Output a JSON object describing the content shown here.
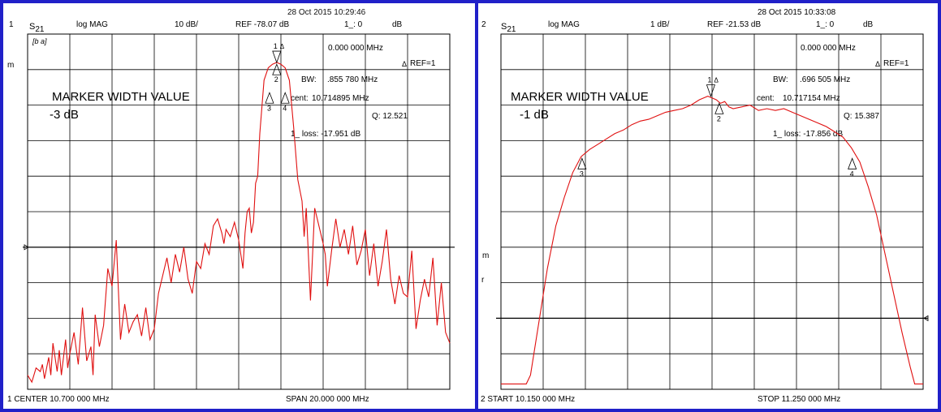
{
  "chart_data": [
    {
      "type": "line",
      "channel": "1",
      "param": "S",
      "param_sub": "21",
      "format": "log MAG",
      "scale": "10 dB/",
      "ref": "REF -78.07 dB",
      "marker_readout": "1_: 0",
      "marker_unit": "dB",
      "timestamp": "28 Oct 2015  10:29:46",
      "marker_freq": "0.000 000 MHz",
      "delta_ref": "REF=1",
      "bw_label": "BW:",
      "bw_value": ".855 780 MHz",
      "cent_label": "cent:",
      "cent_value": "10.714895 MHz",
      "q_value": "Q: 12.521",
      "loss_value": "1_ loss: -17.951 dB",
      "title": "MARKER WIDTH VALUE",
      "width_setting": "-3 dB",
      "side_label": "m",
      "corner_icon": "[b a]",
      "footer_left": "1 CENTER   10.700 000 MHz",
      "footer_right": "SPAN   20.000 000 MHz",
      "x_range": [
        0.0,
        1.0
      ],
      "ref_level_div": 6,
      "series": [
        {
          "color": "#e01010",
          "points": [
            [
              0.0,
              9.6
            ],
            [
              0.01,
              9.8
            ],
            [
              0.02,
              9.4
            ],
            [
              0.03,
              9.5
            ],
            [
              0.035,
              9.3
            ],
            [
              0.04,
              9.7
            ],
            [
              0.05,
              9.1
            ],
            [
              0.055,
              9.6
            ],
            [
              0.06,
              8.7
            ],
            [
              0.07,
              9.5
            ],
            [
              0.075,
              8.9
            ],
            [
              0.08,
              9.6
            ],
            [
              0.09,
              8.6
            ],
            [
              0.095,
              9.4
            ],
            [
              0.1,
              9.0
            ],
            [
              0.11,
              8.4
            ],
            [
              0.12,
              9.3
            ],
            [
              0.125,
              8.5
            ],
            [
              0.13,
              7.7
            ],
            [
              0.14,
              9.2
            ],
            [
              0.15,
              8.8
            ],
            [
              0.155,
              9.6
            ],
            [
              0.16,
              7.9
            ],
            [
              0.17,
              8.8
            ],
            [
              0.18,
              8.2
            ],
            [
              0.19,
              6.6
            ],
            [
              0.2,
              7.1
            ],
            [
              0.21,
              5.8
            ],
            [
              0.22,
              8.6
            ],
            [
              0.23,
              7.6
            ],
            [
              0.24,
              8.4
            ],
            [
              0.25,
              8.1
            ],
            [
              0.26,
              7.9
            ],
            [
              0.27,
              8.5
            ],
            [
              0.28,
              7.7
            ],
            [
              0.29,
              8.6
            ],
            [
              0.3,
              8.3
            ],
            [
              0.31,
              7.3
            ],
            [
              0.32,
              6.8
            ],
            [
              0.33,
              6.3
            ],
            [
              0.34,
              7.0
            ],
            [
              0.35,
              6.2
            ],
            [
              0.36,
              6.7
            ],
            [
              0.37,
              6.0
            ],
            [
              0.38,
              6.9
            ],
            [
              0.39,
              7.3
            ],
            [
              0.4,
              6.4
            ],
            [
              0.41,
              6.6
            ],
            [
              0.42,
              5.9
            ],
            [
              0.43,
              6.2
            ],
            [
              0.44,
              5.4
            ],
            [
              0.45,
              5.2
            ],
            [
              0.46,
              5.6
            ],
            [
              0.465,
              5.9
            ],
            [
              0.47,
              5.5
            ],
            [
              0.48,
              5.7
            ],
            [
              0.49,
              5.3
            ],
            [
              0.5,
              5.8
            ],
            [
              0.51,
              6.6
            ],
            [
              0.515,
              5.6
            ],
            [
              0.52,
              5.0
            ],
            [
              0.525,
              4.9
            ],
            [
              0.53,
              5.6
            ],
            [
              0.535,
              5.3
            ],
            [
              0.54,
              4.2
            ],
            [
              0.545,
              4.0
            ],
            [
              0.55,
              2.8
            ],
            [
              0.56,
              1.3
            ],
            [
              0.57,
              0.95
            ],
            [
              0.58,
              0.85
            ],
            [
              0.59,
              0.8
            ],
            [
              0.6,
              0.85
            ],
            [
              0.61,
              0.95
            ],
            [
              0.62,
              1.3
            ],
            [
              0.63,
              2.6
            ],
            [
              0.64,
              4.1
            ],
            [
              0.65,
              4.7
            ],
            [
              0.655,
              5.7
            ],
            [
              0.66,
              4.9
            ],
            [
              0.67,
              7.5
            ],
            [
              0.68,
              4.9
            ],
            [
              0.69,
              5.4
            ],
            [
              0.7,
              5.9
            ],
            [
              0.705,
              6.2
            ],
            [
              0.71,
              7.1
            ],
            [
              0.72,
              6.1
            ],
            [
              0.73,
              5.2
            ],
            [
              0.74,
              6.0
            ],
            [
              0.75,
              5.5
            ],
            [
              0.76,
              6.2
            ],
            [
              0.77,
              5.4
            ],
            [
              0.78,
              6.5
            ],
            [
              0.79,
              6.1
            ],
            [
              0.8,
              5.5
            ],
            [
              0.81,
              6.8
            ],
            [
              0.82,
              5.9
            ],
            [
              0.83,
              7.1
            ],
            [
              0.84,
              6.4
            ],
            [
              0.85,
              5.5
            ],
            [
              0.86,
              6.9
            ],
            [
              0.87,
              7.6
            ],
            [
              0.88,
              6.8
            ],
            [
              0.89,
              7.3
            ],
            [
              0.9,
              7.4
            ],
            [
              0.91,
              6.1
            ],
            [
              0.92,
              8.3
            ],
            [
              0.93,
              7.5
            ],
            [
              0.94,
              6.9
            ],
            [
              0.95,
              7.4
            ],
            [
              0.96,
              6.3
            ],
            [
              0.97,
              8.2
            ],
            [
              0.98,
              7.0
            ],
            [
              0.99,
              8.4
            ],
            [
              1.0,
              8.7
            ]
          ]
        }
      ],
      "markers": [
        {
          "id": "1",
          "x": 0.59,
          "y": 0.8
        },
        {
          "id": "2",
          "x": 0.59,
          "y": 0.85
        },
        {
          "id": "3",
          "x": 0.573,
          "y": 1.65
        },
        {
          "id": "4",
          "x": 0.61,
          "y": 1.65
        }
      ]
    },
    {
      "type": "line",
      "channel": "2",
      "param": "S",
      "param_sub": "21",
      "format": "log MAG",
      "scale": "1 dB/",
      "ref": "REF -21.53 dB",
      "marker_readout": "1_: 0",
      "marker_unit": "dB",
      "timestamp": "28 Oct 2015  10:33:08",
      "marker_freq": "0.000 000 MHz",
      "delta_ref": "REF=1",
      "bw_label": "BW:",
      "bw_value": ".696 505 MHz",
      "cent_label": "cent:",
      "cent_value": "10.717154 MHz",
      "q_value": "Q: 15.387",
      "loss_value": "1_ loss: -17.856 dB",
      "title": "MARKER WIDTH VALUE",
      "width_setting": "-1 dB",
      "side_label": "m",
      "side_label_2": "r",
      "footer_left": "2 START   10.150 000 MHz",
      "footer_right": "STOP   11.250 000 MHz",
      "x_range": [
        0.0,
        1.0
      ],
      "ref_level_div": 8,
      "series": [
        {
          "color": "#e01010",
          "points": [
            [
              0.0,
              9.85
            ],
            [
              0.02,
              9.85
            ],
            [
              0.04,
              9.85
            ],
            [
              0.06,
              9.85
            ],
            [
              0.07,
              9.6
            ],
            [
              0.09,
              8.1
            ],
            [
              0.11,
              6.6
            ],
            [
              0.13,
              5.4
            ],
            [
              0.15,
              4.6
            ],
            [
              0.17,
              3.9
            ],
            [
              0.19,
              3.45
            ],
            [
              0.21,
              3.25
            ],
            [
              0.23,
              3.1
            ],
            [
              0.25,
              2.95
            ],
            [
              0.27,
              2.8
            ],
            [
              0.29,
              2.7
            ],
            [
              0.31,
              2.55
            ],
            [
              0.33,
              2.45
            ],
            [
              0.35,
              2.4
            ],
            [
              0.37,
              2.3
            ],
            [
              0.39,
              2.2
            ],
            [
              0.41,
              2.15
            ],
            [
              0.43,
              2.1
            ],
            [
              0.45,
              2.0
            ],
            [
              0.47,
              1.85
            ],
            [
              0.49,
              1.75
            ],
            [
              0.5,
              1.8
            ],
            [
              0.51,
              1.85
            ],
            [
              0.52,
              1.95
            ],
            [
              0.53,
              1.9
            ],
            [
              0.54,
              2.05
            ],
            [
              0.55,
              2.1
            ],
            [
              0.57,
              2.05
            ],
            [
              0.59,
              2.0
            ],
            [
              0.61,
              2.15
            ],
            [
              0.63,
              2.1
            ],
            [
              0.65,
              2.15
            ],
            [
              0.67,
              2.1
            ],
            [
              0.69,
              2.2
            ],
            [
              0.71,
              2.3
            ],
            [
              0.73,
              2.4
            ],
            [
              0.75,
              2.5
            ],
            [
              0.77,
              2.6
            ],
            [
              0.79,
              2.75
            ],
            [
              0.81,
              2.9
            ],
            [
              0.83,
              3.2
            ],
            [
              0.85,
              3.6
            ],
            [
              0.87,
              4.3
            ],
            [
              0.89,
              5.1
            ],
            [
              0.91,
              6.2
            ],
            [
              0.93,
              7.3
            ],
            [
              0.95,
              8.4
            ],
            [
              0.97,
              9.4
            ],
            [
              0.98,
              9.85
            ],
            [
              1.0,
              9.85
            ]
          ]
        }
      ],
      "markers": [
        {
          "id": "1",
          "x": 0.497,
          "y": 1.75
        },
        {
          "id": "2",
          "x": 0.517,
          "y": 1.95
        },
        {
          "id": "3",
          "x": 0.192,
          "y": 3.5
        },
        {
          "id": "4",
          "x": 0.832,
          "y": 3.5
        }
      ]
    }
  ]
}
